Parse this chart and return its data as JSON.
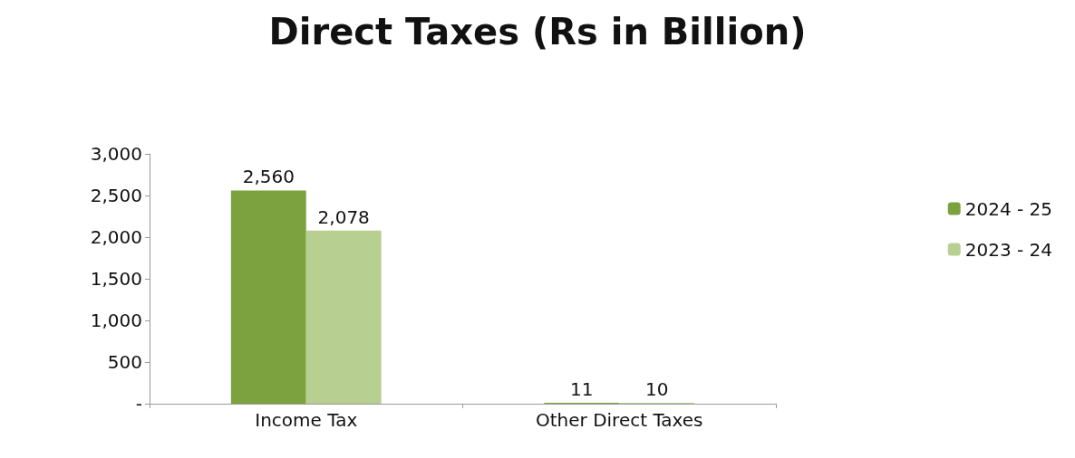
{
  "chart_data": {
    "type": "bar",
    "title": "Direct Taxes (Rs in Billion)",
    "categories": [
      "Income Tax",
      "Other Direct Taxes"
    ],
    "series": [
      {
        "name": "2024 - 25",
        "color": "#7ba23f",
        "values": [
          2560,
          11
        ],
        "value_labels": [
          "2,560",
          "11"
        ]
      },
      {
        "name": "2023 - 24",
        "color": "#b8cf92",
        "values": [
          2078,
          10
        ],
        "value_labels": [
          "2,078",
          "10"
        ]
      }
    ],
    "ylim": [
      0,
      3000
    ],
    "yticks": [
      {
        "value": 0,
        "label": "-"
      },
      {
        "value": 500,
        "label": "500"
      },
      {
        "value": 1000,
        "label": "1,000"
      },
      {
        "value": 1500,
        "label": "1,500"
      },
      {
        "value": 2000,
        "label": "2,000"
      },
      {
        "value": 2500,
        "label": "2,500"
      },
      {
        "value": 3000,
        "label": "3,000"
      }
    ],
    "grid": false,
    "legend": "right"
  }
}
